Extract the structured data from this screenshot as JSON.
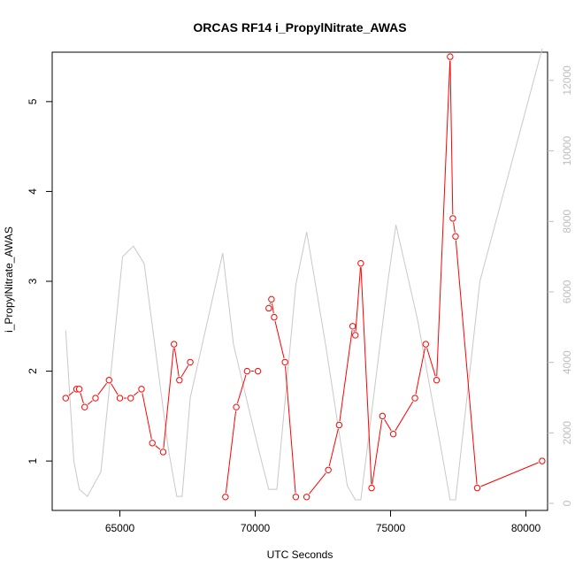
{
  "chart_data": {
    "type": "line",
    "title": "ORCAS RF14 i_PropylNitrate_AWAS",
    "xlabel": "UTC Seconds",
    "ylabel": "i_PropylNitrate_AWAS",
    "xlim": [
      62500,
      80800
    ],
    "ylim": [
      0.45,
      5.55
    ],
    "y2lim": [
      -200,
      12800
    ],
    "x_ticks": [
      65000,
      70000,
      75000,
      80000
    ],
    "y_ticks": [
      1,
      2,
      3,
      4,
      5
    ],
    "y2_ticks": [
      0,
      2000,
      4000,
      6000,
      8000,
      10000,
      12000
    ],
    "series": [
      {
        "axis": "left",
        "color": "#ff0000",
        "marker": "open-circle",
        "x": [
          63000,
          63400,
          63500,
          63700,
          64100,
          64600,
          65000,
          65400,
          65800,
          66200,
          66600,
          67000,
          67200,
          67600,
          68900,
          69300,
          69700,
          70100,
          70500,
          70600,
          70700,
          71100,
          71500,
          71900,
          72700,
          73100,
          73600,
          73700,
          73900,
          74300,
          74700,
          75100,
          75900,
          76300,
          76700,
          77200,
          77300,
          77400,
          78200,
          80600
        ],
        "values": [
          1.7,
          1.8,
          1.8,
          1.6,
          1.7,
          1.9,
          1.7,
          1.7,
          1.8,
          1.2,
          1.1,
          2.3,
          1.9,
          2.1,
          0.6,
          1.6,
          2.0,
          2.0,
          2.7,
          2.8,
          2.6,
          2.1,
          0.6,
          0.6,
          0.9,
          1.4,
          2.5,
          2.4,
          3.2,
          0.7,
          1.5,
          1.3,
          1.7,
          2.3,
          1.9,
          5.5,
          3.7,
          3.5,
          0.7,
          1.0
        ],
        "breaks_after_x": [
          67600,
          70100,
          71500
        ]
      },
      {
        "axis": "right",
        "color": "#c8c8c8",
        "x": [
          63000,
          63300,
          63500,
          63800,
          64300,
          65100,
          65500,
          65900,
          66800,
          67100,
          67300,
          67600,
          68800,
          69200,
          70100,
          70500,
          70800,
          71500,
          71900,
          72600,
          73400,
          73700,
          73900,
          74900,
          75200,
          76000,
          76900,
          77200,
          77400,
          78300,
          80600
        ],
        "values": [
          4900,
          1200,
          400,
          200,
          900,
          7000,
          7300,
          6800,
          1500,
          200,
          200,
          3000,
          7100,
          4500,
          1600,
          400,
          400,
          6200,
          7700,
          4500,
          500,
          100,
          100,
          6300,
          7900,
          5200,
          1400,
          100,
          100,
          6300,
          12900
        ]
      }
    ]
  }
}
